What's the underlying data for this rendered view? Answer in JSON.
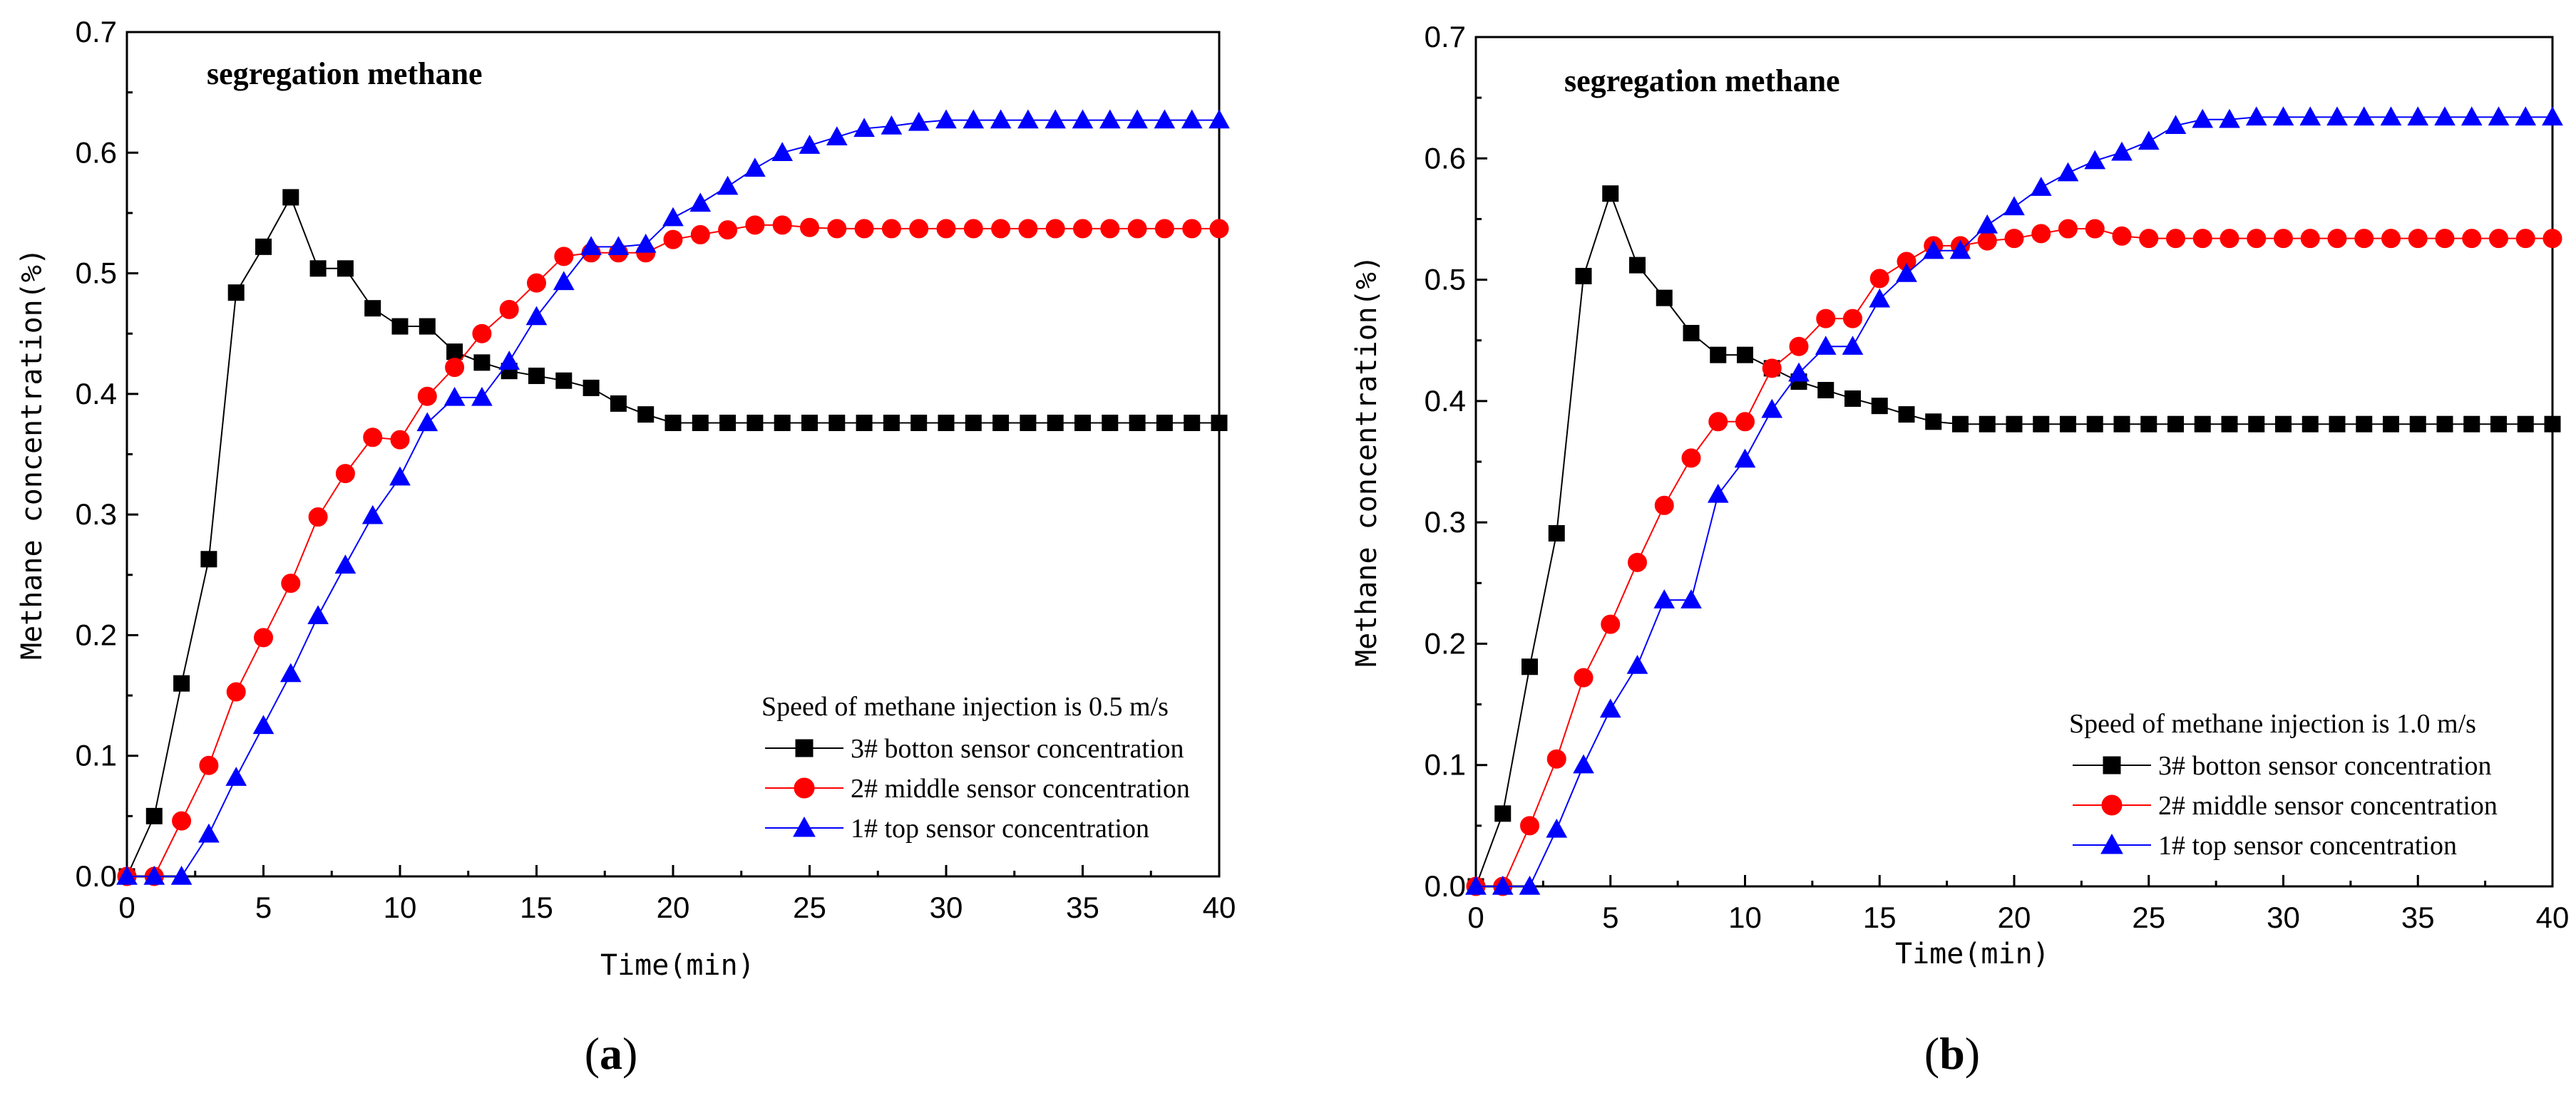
{
  "chart_data": [
    {
      "type": "line",
      "panel_label": "a",
      "title": "segregation methane",
      "xlabel": "Time(min)",
      "ylabel": "Methane concentration(%)",
      "xlim": [
        0,
        40
      ],
      "ylim": [
        0,
        0.7
      ],
      "xticks": [
        0,
        5,
        10,
        15,
        20,
        25,
        30,
        35,
        40
      ],
      "yticks": [
        0.0,
        0.1,
        0.2,
        0.3,
        0.4,
        0.5,
        0.6,
        0.7
      ],
      "xtick_labels": [
        "0",
        "5",
        "10",
        "15",
        "20",
        "25",
        "30",
        "35",
        "40"
      ],
      "ytick_labels": [
        "0.0",
        "0.1",
        "0.2",
        "0.3",
        "0.4",
        "0.5",
        "0.6",
        "0.7"
      ],
      "legend_title": "Speed of methane injection is 0.5 m/s",
      "legend_position": "bottom-right",
      "grid": false,
      "x": [
        0,
        1,
        2,
        3,
        4,
        5,
        6,
        7,
        8,
        9,
        10,
        11,
        12,
        13,
        14,
        15,
        16,
        17,
        18,
        19,
        20,
        21,
        22,
        23,
        24,
        25,
        26,
        27,
        28,
        29,
        30,
        31,
        32,
        33,
        34,
        35,
        36,
        37,
        38,
        39,
        40
      ],
      "series": [
        {
          "name": "3# botton sensor concentration",
          "marker": "square",
          "color": "#000000",
          "values": [
            0,
            0.05,
            0.16,
            0.263,
            0.484,
            0.522,
            0.563,
            0.504,
            0.504,
            0.471,
            0.456,
            0.456,
            0.435,
            0.426,
            0.419,
            0.415,
            0.411,
            0.405,
            0.392,
            0.383,
            0.376,
            0.376,
            0.376,
            0.376,
            0.376,
            0.376,
            0.376,
            0.376,
            0.376,
            0.376,
            0.376,
            0.376,
            0.376,
            0.376,
            0.376,
            0.376,
            0.376,
            0.376,
            0.376,
            0.376,
            0.376
          ]
        },
        {
          "name": "2# middle sensor concentration",
          "marker": "circle",
          "color": "#ff0000",
          "values": [
            0,
            0,
            0.046,
            0.092,
            0.153,
            0.198,
            0.243,
            0.298,
            0.334,
            0.364,
            0.362,
            0.398,
            0.422,
            0.45,
            0.47,
            0.492,
            0.514,
            0.517,
            0.517,
            0.517,
            0.528,
            0.532,
            0.536,
            0.54,
            0.54,
            0.538,
            0.537,
            0.537,
            0.537,
            0.537,
            0.537,
            0.537,
            0.537,
            0.537,
            0.537,
            0.537,
            0.537,
            0.537,
            0.537,
            0.537,
            0.537
          ]
        },
        {
          "name": "1# top sensor concentration",
          "marker": "triangle",
          "color": "#0000ff",
          "values": [
            0,
            0,
            0,
            0.035,
            0.082,
            0.125,
            0.168,
            0.216,
            0.258,
            0.299,
            0.331,
            0.376,
            0.397,
            0.397,
            0.427,
            0.464,
            0.493,
            0.522,
            0.522,
            0.524,
            0.546,
            0.558,
            0.572,
            0.587,
            0.6,
            0.606,
            0.613,
            0.62,
            0.622,
            0.625,
            0.627,
            0.627,
            0.627,
            0.627,
            0.627,
            0.627,
            0.627,
            0.627,
            0.627,
            0.627,
            0.627
          ]
        }
      ]
    },
    {
      "type": "line",
      "panel_label": "b",
      "title": "segregation methane",
      "xlabel": "Time(min)",
      "ylabel": "Methane concentration(%)",
      "xlim": [
        0,
        40
      ],
      "ylim": [
        0,
        0.7
      ],
      "xticks": [
        0,
        5,
        10,
        15,
        20,
        25,
        30,
        35,
        40
      ],
      "yticks": [
        0.0,
        0.1,
        0.2,
        0.3,
        0.4,
        0.5,
        0.6,
        0.7
      ],
      "xtick_labels": [
        "0",
        "5",
        "10",
        "15",
        "20",
        "25",
        "30",
        "35",
        "40"
      ],
      "ytick_labels": [
        "0.0",
        "0.1",
        "0.2",
        "0.3",
        "0.4",
        "0.5",
        "0.6",
        "0.7"
      ],
      "legend_title": "Speed of methane injection is 1.0 m/s",
      "legend_position": "bottom-right",
      "grid": false,
      "x": [
        0,
        1,
        2,
        3,
        4,
        5,
        6,
        7,
        8,
        9,
        10,
        11,
        12,
        13,
        14,
        15,
        16,
        17,
        18,
        19,
        20,
        21,
        22,
        23,
        24,
        25,
        26,
        27,
        28,
        29,
        30,
        31,
        32,
        33,
        34,
        35,
        36,
        37,
        38,
        39,
        40
      ],
      "series": [
        {
          "name": "3# botton sensor concentration",
          "marker": "square",
          "color": "#000000",
          "values": [
            0,
            0.06,
            0.181,
            0.291,
            0.503,
            0.571,
            0.512,
            0.485,
            0.456,
            0.438,
            0.438,
            0.427,
            0.416,
            0.409,
            0.402,
            0.396,
            0.389,
            0.383,
            0.381,
            0.381,
            0.381,
            0.381,
            0.381,
            0.381,
            0.381,
            0.381,
            0.381,
            0.381,
            0.381,
            0.381,
            0.381,
            0.381,
            0.381,
            0.381,
            0.381,
            0.381,
            0.381,
            0.381,
            0.381,
            0.381,
            0.381
          ]
        },
        {
          "name": "2# middle sensor concentration",
          "marker": "circle",
          "color": "#ff0000",
          "values": [
            0,
            0,
            0.05,
            0.105,
            0.172,
            0.216,
            0.267,
            0.314,
            0.353,
            0.383,
            0.383,
            0.427,
            0.445,
            0.468,
            0.468,
            0.501,
            0.515,
            0.528,
            0.528,
            0.532,
            0.534,
            0.538,
            0.542,
            0.542,
            0.536,
            0.534,
            0.534,
            0.534,
            0.534,
            0.534,
            0.534,
            0.534,
            0.534,
            0.534,
            0.534,
            0.534,
            0.534,
            0.534,
            0.534,
            0.534,
            0.534
          ]
        },
        {
          "name": "1# top sensor concentration",
          "marker": "triangle",
          "color": "#0000ff",
          "values": [
            0,
            0,
            0,
            0.047,
            0.1,
            0.146,
            0.182,
            0.236,
            0.236,
            0.323,
            0.352,
            0.393,
            0.423,
            0.445,
            0.445,
            0.484,
            0.505,
            0.524,
            0.524,
            0.545,
            0.56,
            0.576,
            0.588,
            0.598,
            0.605,
            0.614,
            0.627,
            0.632,
            0.632,
            0.634,
            0.634,
            0.634,
            0.634,
            0.634,
            0.634,
            0.634,
            0.634,
            0.634,
            0.634,
            0.634,
            0.634
          ]
        }
      ]
    }
  ]
}
